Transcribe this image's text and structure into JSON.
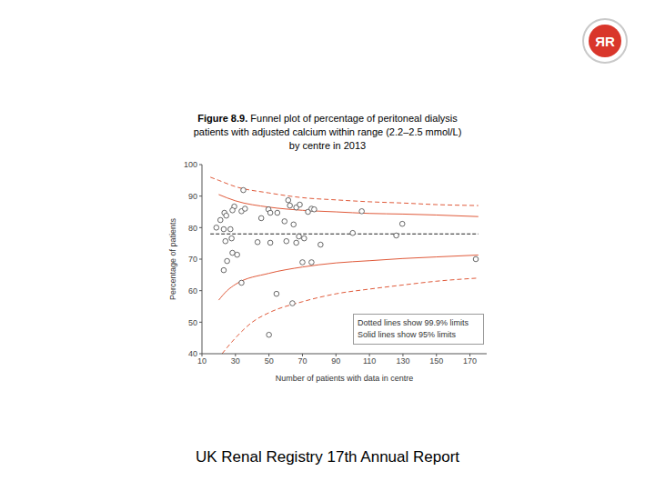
{
  "logo": "ЯR",
  "footer": "UK Renal Registry 17th Annual Report",
  "chart_data": {
    "type": "scatter",
    "title": [
      "Figure 8.9. Funnel plot of percentage of peritoneal dialysis",
      "patients with adjusted calcium within range (2.2–2.5 mmol/L)",
      "by centre in 2013"
    ],
    "x_label": "Number of patients with data in centre",
    "y_label": "Percentage of patients",
    "xlim": [
      10,
      180
    ],
    "xticks": [
      10,
      30,
      50,
      70,
      90,
      110,
      130,
      150,
      170
    ],
    "ylim": [
      40,
      100
    ],
    "yticks": [
      40,
      50,
      60,
      70,
      80,
      90,
      100
    ],
    "grid": false,
    "annotations": [
      "Dotted lines show 99.9% limits",
      "Solid lines show 95% limits"
    ],
    "series": [
      {
        "type": "scatter",
        "marker": "circle",
        "color": "#444444",
        "x": [
          18.6,
          21,
          23.4,
          24.5,
          23,
          24,
          25,
          23,
          29.3,
          28.2,
          27.7,
          28.2,
          31,
          27,
          34.7,
          33.6,
          35.7,
          33.6,
          45.4,
          43.2,
          49.7,
          50.8,
          55,
          50.8,
          54.5,
          50,
          59.3,
          60.4,
          61.5,
          62.5,
          64.7,
          64,
          66.3,
          66.3,
          68.4,
          67.9,
          70,
          71,
          73.3,
          75.4,
          75.4,
          77,
          80.8,
          100,
          105.4,
          126,
          129.6,
          173.5
        ],
        "values": [
          80,
          82.4,
          84.7,
          83.8,
          79.5,
          75.7,
          69.4,
          66.5,
          86.7,
          85.5,
          76.6,
          72,
          71.4,
          79.5,
          91.9,
          85.2,
          86,
          62.5,
          83,
          75.4,
          85.8,
          84.7,
          84.7,
          75.2,
          59,
          46,
          82,
          75.7,
          88.7,
          87,
          81,
          56,
          75.2,
          86.4,
          87.3,
          77.2,
          69,
          76.6,
          85,
          86,
          69,
          85.8,
          74.6,
          78.3,
          85.2,
          77.5,
          81.2,
          70
        ]
      },
      {
        "type": "line",
        "line_style": "dotted",
        "color": "#e05a3a",
        "x": [
          15,
          20,
          30,
          50,
          70,
          90,
          110,
          130,
          150,
          175
        ],
        "values": [
          96,
          95,
          93,
          91,
          89.5,
          88.8,
          88.2,
          87.8,
          87.3,
          87
        ]
      },
      {
        "type": "line",
        "line_style": "solid",
        "color": "#e05a3a",
        "x": [
          20,
          30,
          50,
          70,
          90,
          110,
          130,
          150,
          175
        ],
        "values": [
          90.5,
          88.5,
          86.5,
          85.5,
          85,
          84.5,
          84.3,
          84,
          83.5
        ]
      },
      {
        "type": "line",
        "line_style": "dashed",
        "color": "#222222",
        "x": [
          15,
          175
        ],
        "values": [
          78,
          78
        ]
      },
      {
        "type": "line",
        "line_style": "solid",
        "color": "#e05a3a",
        "x": [
          20,
          25,
          30,
          50,
          70,
          90,
          110,
          130,
          150,
          175
        ],
        "values": [
          57,
          60,
          62,
          65.5,
          67.5,
          68.8,
          69.5,
          70.2,
          70.7,
          71.3
        ]
      },
      {
        "type": "line",
        "line_style": "dotted",
        "color": "#e05a3a",
        "x": [
          22,
          30,
          40,
          50,
          70,
          90,
          110,
          130,
          150,
          175
        ],
        "values": [
          40,
          45,
          50,
          53,
          56.5,
          59,
          60.5,
          61.8,
          63,
          64
        ]
      }
    ]
  }
}
